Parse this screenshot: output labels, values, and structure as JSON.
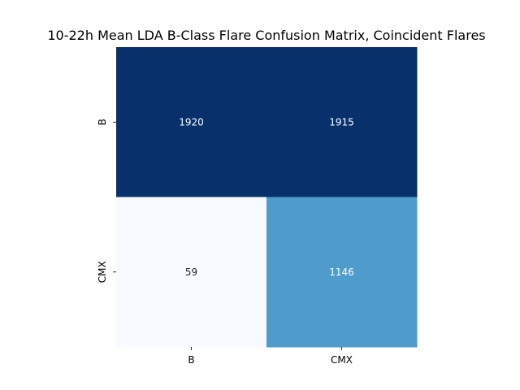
{
  "chart_data": {
    "type": "heatmap",
    "title": "10-22h Mean LDA B-Class Flare Confusion Matrix, Coincident Flares",
    "xlabel": "",
    "ylabel": "",
    "x_categories": [
      "B",
      "CMX"
    ],
    "y_categories": [
      "B",
      "CMX"
    ],
    "values": [
      [
        1920,
        1915
      ],
      [
        59,
        1146
      ]
    ],
    "value_labels": [
      [
        "1920",
        "1915"
      ],
      [
        "59",
        "1146"
      ]
    ],
    "colormap": "Blues",
    "color_range": [
      59,
      1920
    ],
    "colorbar": false,
    "colors": {
      "low": "#f7fbff",
      "high": "#08306b",
      "text_on_dark": "#ffffff",
      "text_on_light": "#262626"
    }
  }
}
